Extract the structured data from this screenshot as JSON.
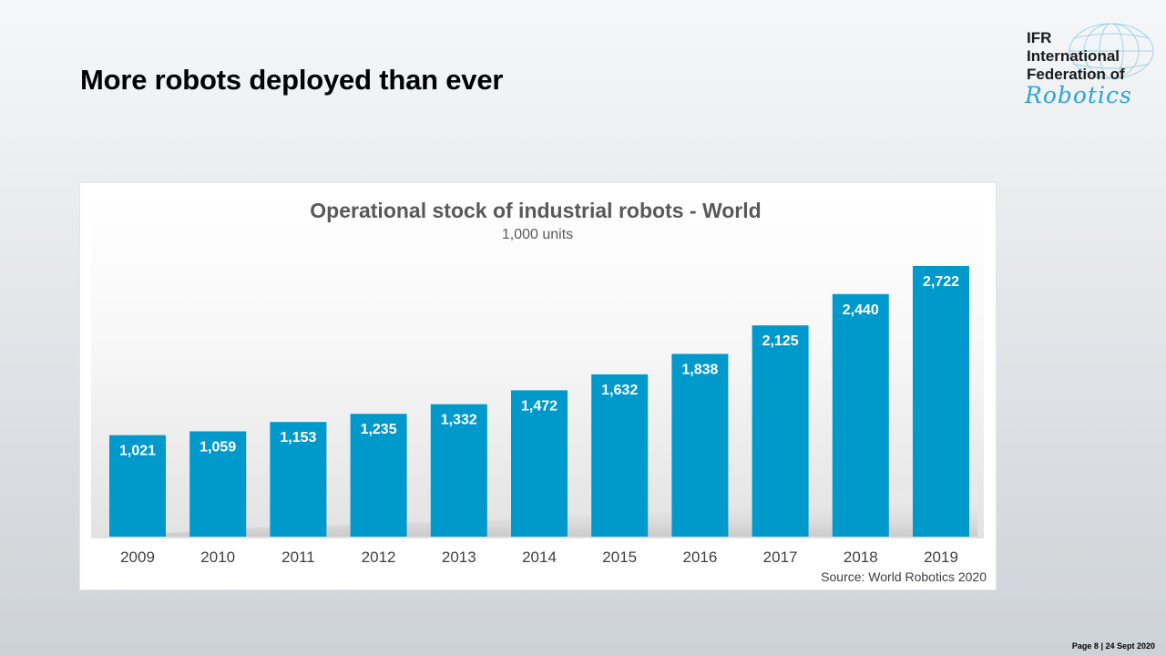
{
  "slide": {
    "title": "More robots deployed than ever",
    "footer": "Page 8 | 24 Sept 2020"
  },
  "logo": {
    "line1": "IFR",
    "line2": "International",
    "line3": "Federation of",
    "script": "Robotics"
  },
  "colors": {
    "bar": "#0099cc",
    "title": "#595959",
    "tick": "#404040",
    "label": "#ffffff"
  },
  "chart_data": {
    "type": "bar",
    "title": "Operational stock of industrial robots - World",
    "subtitle": "1,000 units",
    "categories": [
      "2009",
      "2010",
      "2011",
      "2012",
      "2013",
      "2014",
      "2015",
      "2016",
      "2017",
      "2018",
      "2019"
    ],
    "values": [
      1021,
      1059,
      1153,
      1235,
      1332,
      1472,
      1632,
      1838,
      2125,
      2440,
      2722
    ],
    "value_labels": [
      "1,021",
      "1,059",
      "1,153",
      "1,235",
      "1,332",
      "1,472",
      "1,632",
      "1,838",
      "2,125",
      "2,440",
      "2,722"
    ],
    "source": "Source: World Robotics 2020",
    "xlabel": "",
    "ylabel": "",
    "grid": false
  }
}
